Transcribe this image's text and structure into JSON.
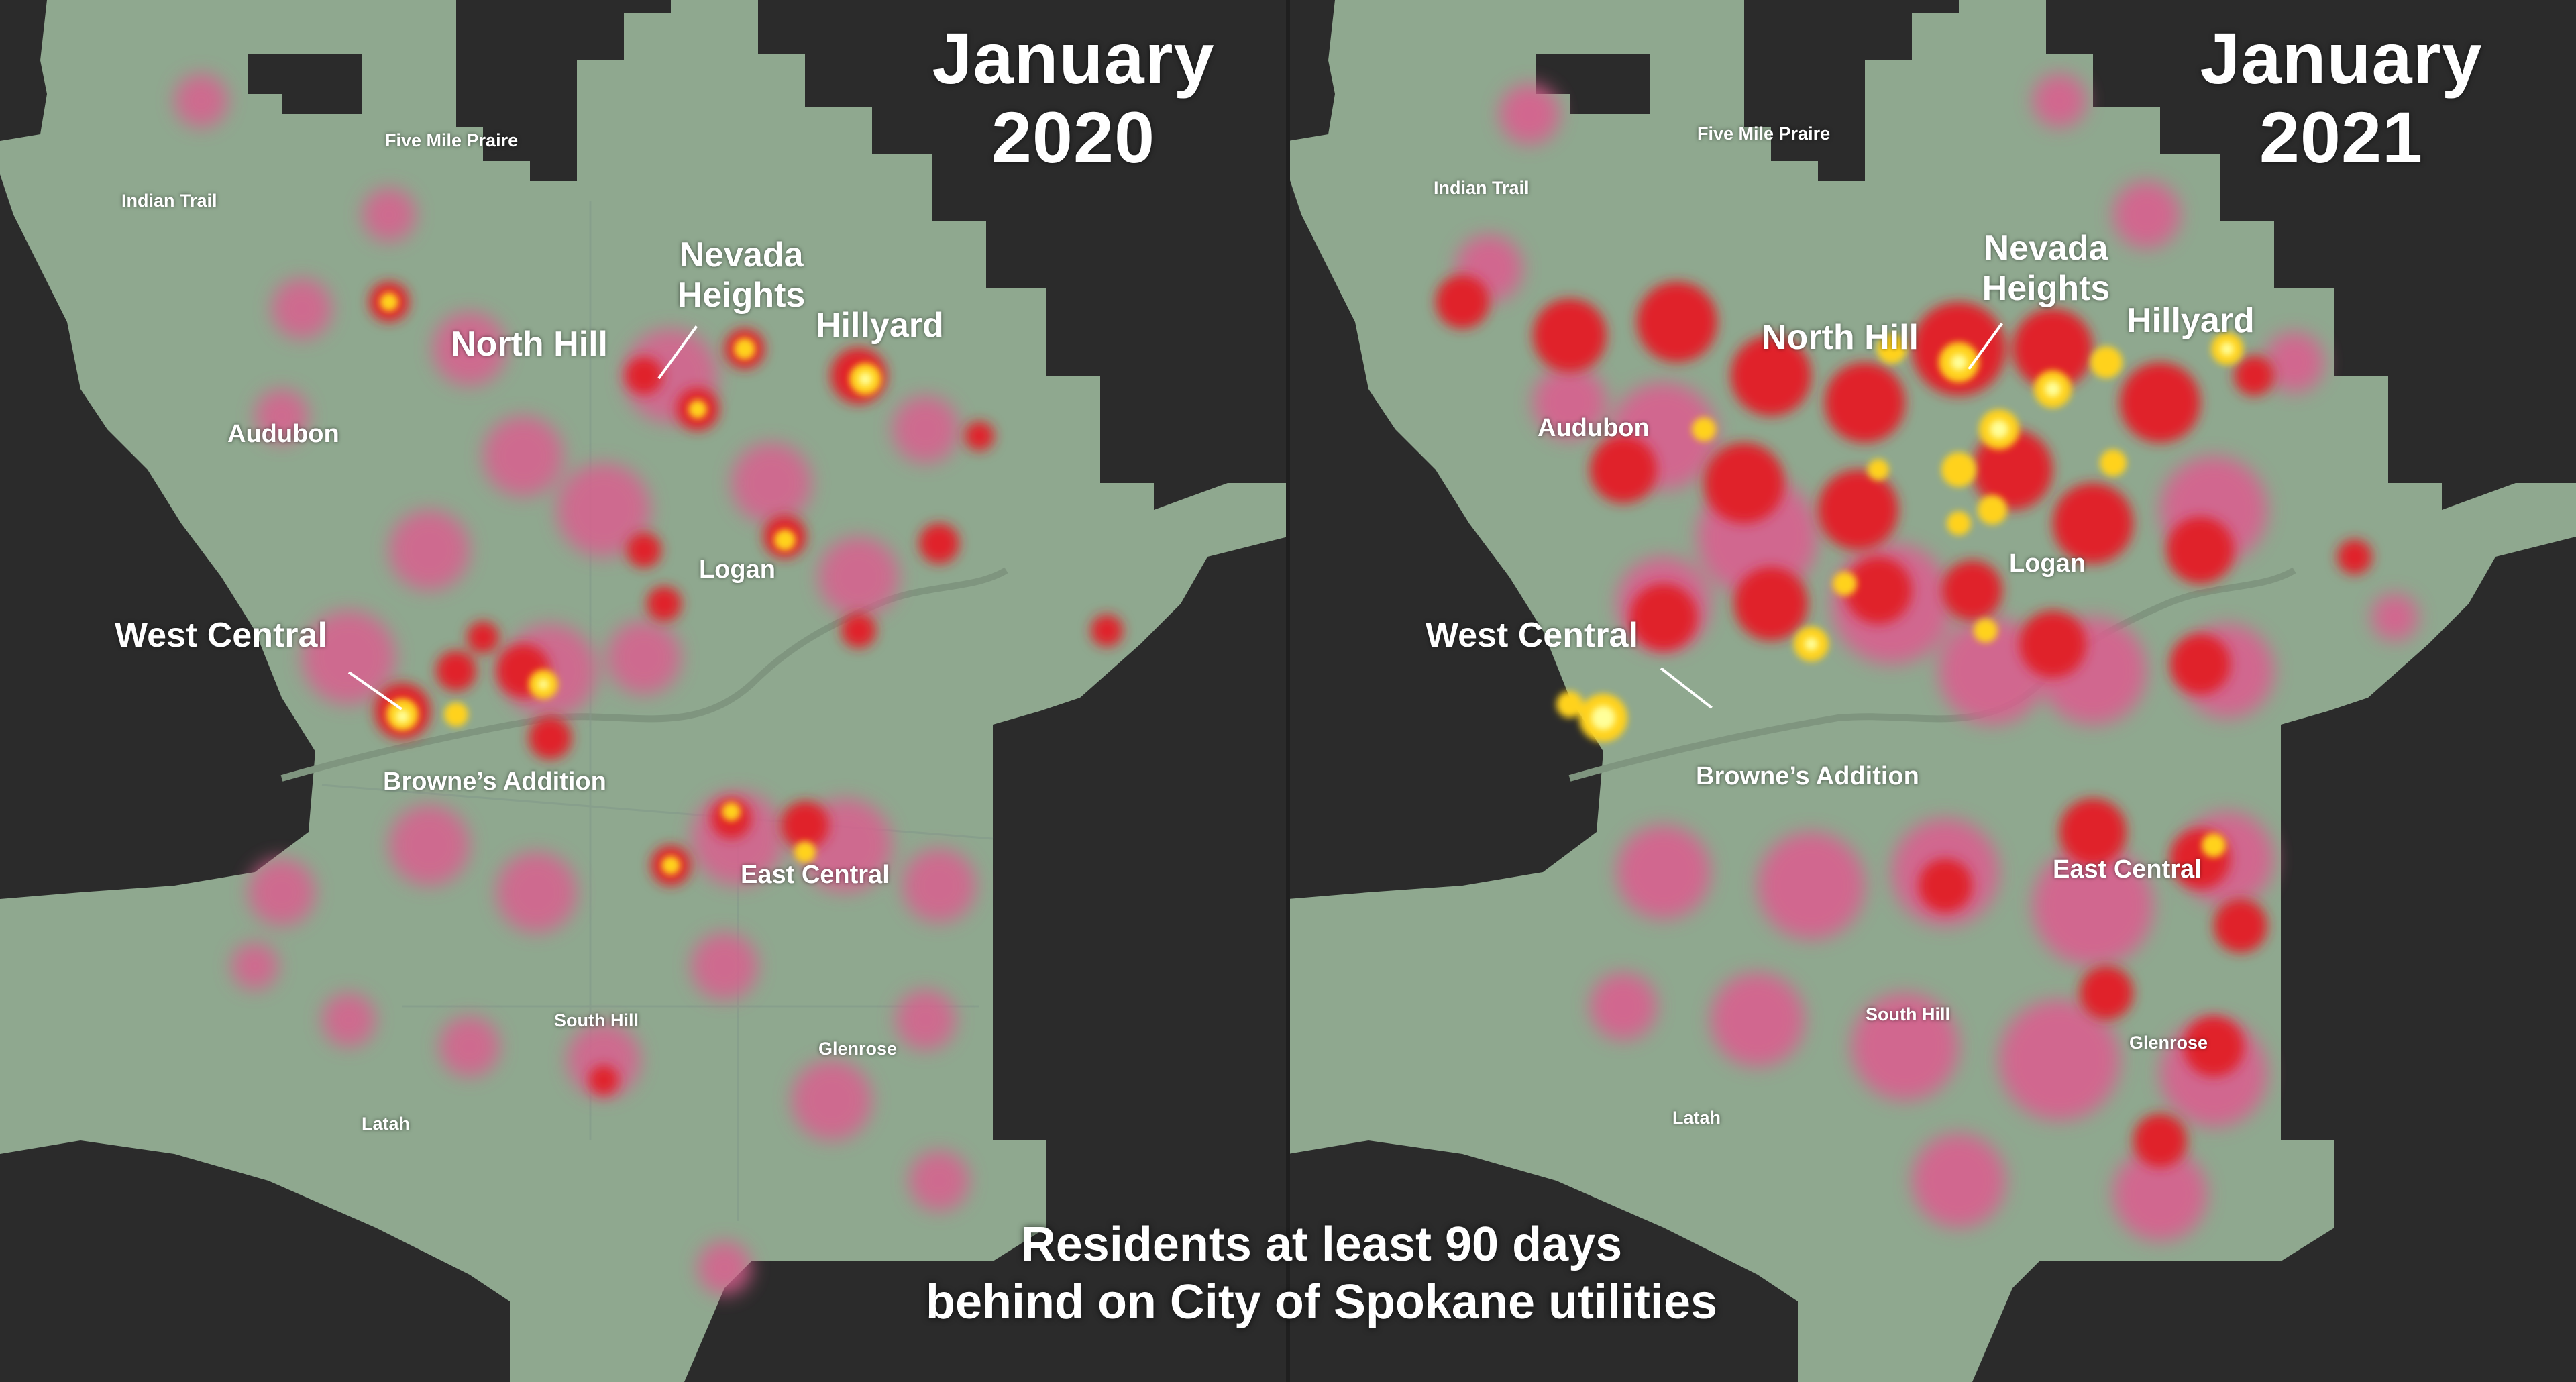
{
  "panels": [
    {
      "title_line1": "January",
      "title_line2": "2020",
      "labels": {
        "five_mile_prairie": "Five Mile Praire",
        "indian_trail": "Indian Trail",
        "nevada_heights": "Nevada\nHeights",
        "north_hill": "North Hill",
        "hillyard": "Hillyard",
        "audubon": "Audubon",
        "logan": "Logan",
        "west_central": "West Central",
        "brownes_addition": "Browne’s Addition",
        "east_central": "East Central",
        "south_hill": "South Hill",
        "glenrose": "Glenrose",
        "latah": "Latah"
      }
    },
    {
      "title_line1": "January",
      "title_line2": "2021",
      "labels": {
        "five_mile_prairie": "Five Mile Praire",
        "indian_trail": "Indian Trail",
        "nevada_heights": "Nevada\nHeights",
        "north_hill": "North Hill",
        "hillyard": "Hillyard",
        "audubon": "Audubon",
        "logan": "Logan",
        "west_central": "West Central",
        "brownes_addition": "Browne’s Addition",
        "east_central": "East Central",
        "south_hill": "South Hill",
        "glenrose": "Glenrose",
        "latah": "Latah"
      }
    }
  ],
  "caption_line1": "Residents at least 90 days",
  "caption_line2": "behind on City of Spokane utilities",
  "colors": {
    "background": "#2b2b2b",
    "city_land": "#8fa88f",
    "heat_low": "#d9608f",
    "heat_mid": "#e0202c",
    "heat_high": "#ffd21f",
    "heat_peak": "#ffff9a",
    "label_text": "#ffffff"
  }
}
